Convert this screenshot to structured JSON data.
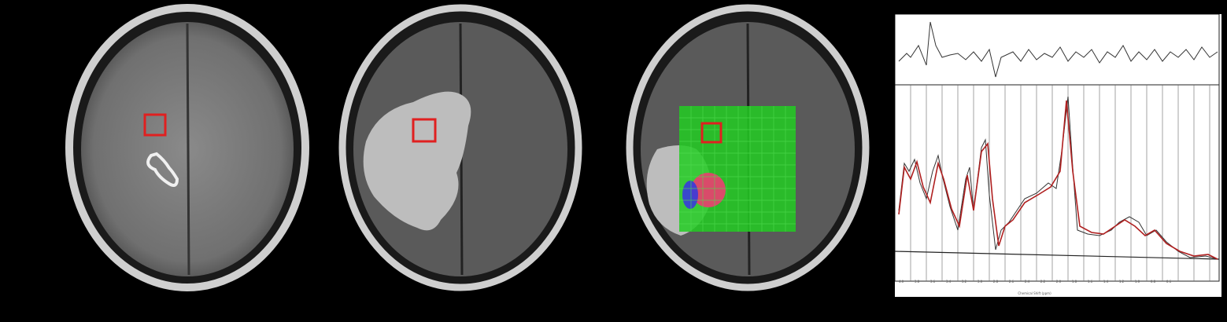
{
  "figure": {
    "panels": [
      {
        "name": "t1-postcontrast-axial",
        "roi_marker": "red-square"
      },
      {
        "name": "flair-axial",
        "roi_marker": "red-square"
      },
      {
        "name": "flair-axial-with-mrsi-grid-overlay",
        "roi_marker": "red-square",
        "overlay_colors": [
          "#2ecc40",
          "#e0402a",
          "#3a3adc"
        ]
      },
      {
        "name": "mr-spectrum-plot"
      }
    ],
    "colors": {
      "background": "#000000",
      "roi": "#e02020",
      "grid_overlay": "#22cc22",
      "spectrum_fit": "#b02020",
      "spectrum_raw": "#333333"
    }
  },
  "spectrum": {
    "x_tick_labels": [
      "4.0",
      "3.8",
      "3.6",
      "3.4",
      "3.2",
      "3.0",
      "2.8",
      "2.6",
      "2.4",
      "2.2",
      "2.0",
      "1.8",
      "1.6",
      "1.4",
      "1.2",
      "1.0",
      "0.8",
      "0.6"
    ],
    "x_axis_label": "Chemical Shift (ppm)"
  }
}
